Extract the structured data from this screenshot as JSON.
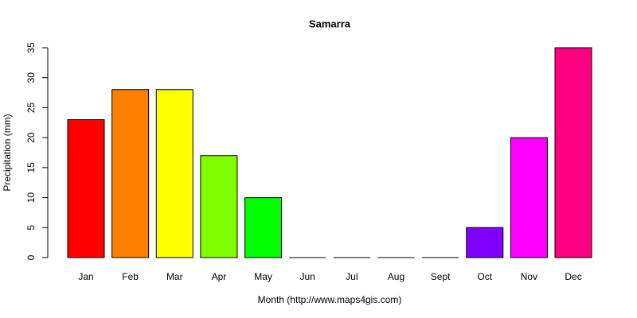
{
  "chart_data": {
    "type": "bar",
    "title": "Samarra",
    "x_label": "Month (http://www.maps4gis.com)",
    "y_label": "Precipitation (mm)",
    "categories": [
      "Jan",
      "Feb",
      "Mar",
      "Apr",
      "May",
      "Jun",
      "Jul",
      "Aug",
      "Sept",
      "Oct",
      "Nov",
      "Dec"
    ],
    "values": [
      23,
      28,
      28,
      17,
      10,
      0,
      0,
      0,
      0,
      5,
      20,
      35
    ],
    "colors": [
      "#ff0000",
      "#ff8000",
      "#ffff00",
      "#80ff00",
      "#00ff00",
      "#00ff80",
      "#00ffff",
      "#0080ff",
      "#0000ff",
      "#8000ff",
      "#ff00ff",
      "#ff0080"
    ],
    "ylim": [
      0,
      35
    ],
    "yticks": [
      0,
      5,
      10,
      15,
      20,
      25,
      30,
      35
    ],
    "grid": false
  }
}
